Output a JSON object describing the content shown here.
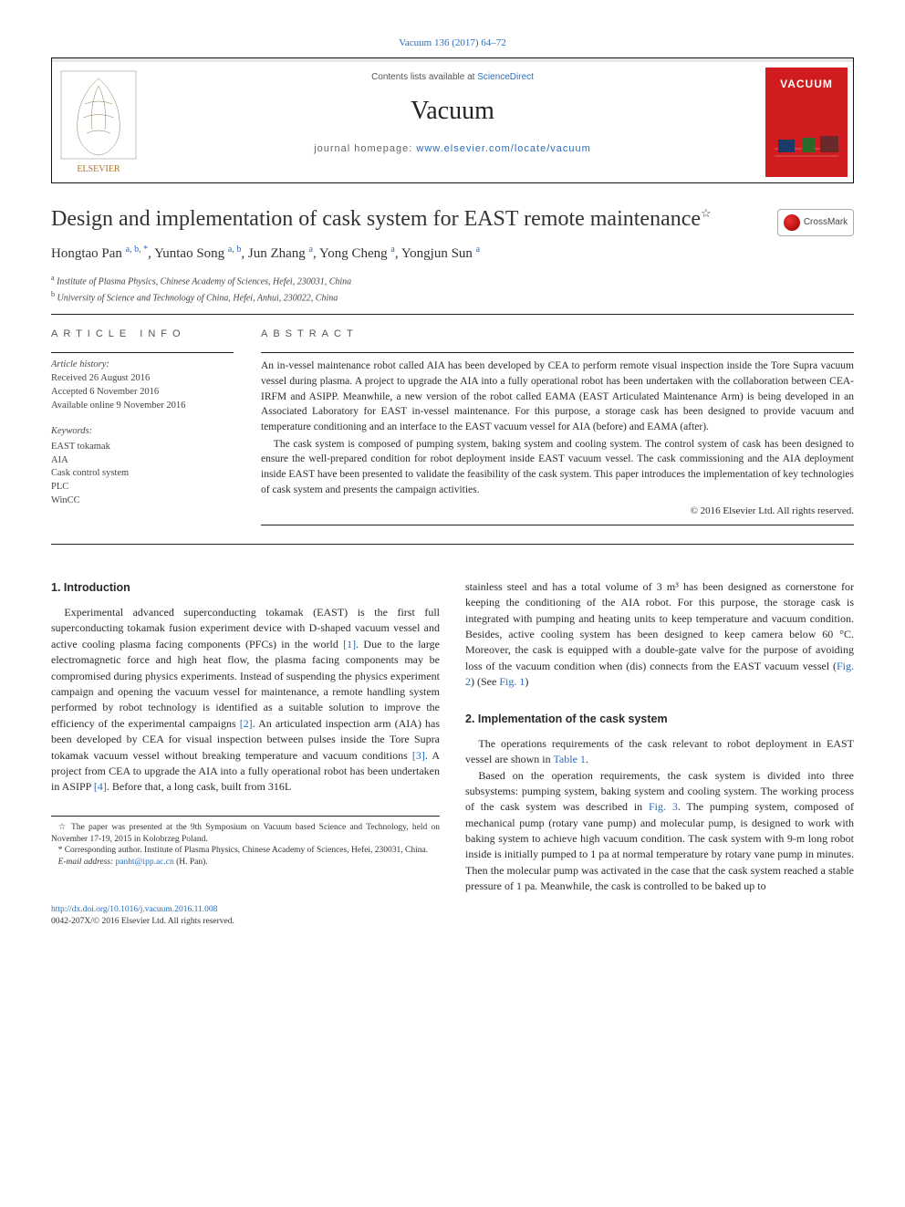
{
  "journal": {
    "citation": "Vacuum 136 (2017) 64–72",
    "contents_prefix": "Contents lists available at ",
    "contents_link": "ScienceDirect",
    "name": "Vacuum",
    "homepage_prefix": "journal homepage: ",
    "homepage_url": "www.elsevier.com/locate/vacuum",
    "cover_label": "VACUUM",
    "publisher_name": "ELSEVIER"
  },
  "article": {
    "title": "Design and implementation of cask system for EAST remote maintenance",
    "title_note_marker": "☆",
    "crossmark_label": "CrossMark"
  },
  "authors_html": "Hongtao Pan <sup>a, b, *</sup>, Yuntao Song <sup>a, b</sup>, Jun Zhang <sup>a</sup>, Yong Cheng <sup>a</sup>, Yongjun Sun <sup>a</sup>",
  "affiliations": [
    {
      "marker": "a",
      "text": "Institute of Plasma Physics, Chinese Academy of Sciences, Hefei, 230031, China"
    },
    {
      "marker": "b",
      "text": "University of Science and Technology of China, Hefei, Anhui, 230022, China"
    }
  ],
  "article_info": {
    "heading": "ARTICLE INFO",
    "history_label": "Article history:",
    "received": "Received 26 August 2016",
    "accepted": "Accepted 6 November 2016",
    "online": "Available online 9 November 2016",
    "keywords_label": "Keywords:",
    "keywords": [
      "EAST tokamak",
      "AIA",
      "Cask control system",
      "PLC",
      "WinCC"
    ]
  },
  "abstract": {
    "heading": "ABSTRACT",
    "p1": "An in-vessel maintenance robot called AIA has been developed by CEA to perform remote visual inspection inside the Tore Supra vacuum vessel during plasma. A project to upgrade the AIA into a fully operational robot has been undertaken with the collaboration between CEA-IRFM and ASIPP. Meanwhile, a new version of the robot called EAMA (EAST Articulated Maintenance Arm) is being developed in an Associated Laboratory for EAST in-vessel maintenance. For this purpose, a storage cask has been designed to provide vacuum and temperature conditioning and an interface to the EAST vacuum vessel for AIA (before) and EAMA (after).",
    "p2": "The cask system is composed of pumping system, baking system and cooling system. The control system of cask has been designed to ensure the well-prepared condition for robot deployment inside EAST vacuum vessel. The cask commissioning and the AIA deployment inside EAST have been presented to validate the feasibility of the cask system. This paper introduces the implementation of key technologies of cask system and presents the campaign activities.",
    "copyright": "© 2016 Elsevier Ltd. All rights reserved."
  },
  "body": {
    "s1_heading": "1. Introduction",
    "s1_p1_a": "Experimental advanced superconducting tokamak (EAST) is the first full superconducting tokamak fusion experiment device with D-shaped vacuum vessel and active cooling plasma facing components (PFCs) in the world ",
    "ref1": "[1]",
    "s1_p1_b": ". Due to the large electromagnetic force and high heat flow, the plasma facing components may be compromised during physics experiments. Instead of suspending the physics experiment campaign and opening the vacuum vessel for maintenance, a remote handling system performed by robot technology is identified as a suitable solution to improve the efficiency of the experimental campaigns ",
    "ref2": "[2]",
    "s1_p1_c": ". An articulated inspection arm (AIA) has been developed by CEA for visual inspection between pulses inside the Tore Supra tokamak vacuum vessel without breaking temperature and vacuum conditions ",
    "ref3": "[3]",
    "s1_p1_d": ". A project from CEA to upgrade the AIA into a fully operational robot has been undertaken in ASIPP ",
    "ref4": "[4]",
    "s1_p1_e": ". Before that, a long cask, built from 316L ",
    "s1_cont_a": "stainless steel and has a total volume of 3 m³ has been designed as cornerstone for keeping the conditioning of the AIA robot. For this purpose, the storage cask is integrated with pumping and heating units to keep temperature and vacuum condition. Besides, active cooling system has been designed to keep camera below 60 °C. Moreover, the cask is equipped with a double-gate valve for the purpose of avoiding loss of the vacuum condition when (dis) connects from the EAST vacuum vessel (",
    "fig2": "Fig. 2",
    "s1_cont_b": ") (See ",
    "fig1": "Fig. 1",
    "s1_cont_c": ")",
    "s2_heading": "2. Implementation of the cask system",
    "s2_p1_a": "The operations requirements of the cask relevant to robot deployment in EAST vessel are shown in ",
    "table1": "Table 1",
    "s2_p1_b": ".",
    "s2_p2_a": "Based on the operation requirements, the cask system is divided into three subsystems: pumping system, baking system and cooling system. The working process of the cask system was described in ",
    "fig3": "Fig. 3",
    "s2_p2_b": ". The pumping system, composed of mechanical pump (rotary vane pump) and molecular pump, is designed to work with baking system to achieve high vacuum condition. The cask system with 9-m long robot inside is initially pumped to 1 pa at normal temperature by rotary vane pump in minutes. Then the molecular pump was activated in the case that the cask system reached a stable pressure of 1 pa. Meanwhile, the cask is controlled to be baked up to"
  },
  "footnotes": {
    "star": "☆ The paper was presented at the 9th Symposium on Vacuum based Science and Technology, held on November 17-19, 2015 in Kolobrzeg Poland.",
    "corr": "* Corresponding author. Institute of Plasma Physics, Chinese Academy of Sciences, Hefei, 230031, China.",
    "email_label": "E-mail address: ",
    "email": "panht@ipp.ac.cn",
    "email_suffix": " (H. Pan)."
  },
  "footer": {
    "doi": "http://dx.doi.org/10.1016/j.vacuum.2016.11.008",
    "issn_line": "0042-207X/© 2016 Elsevier Ltd. All rights reserved."
  },
  "colors": {
    "link": "#2a6ebb",
    "cover_bg": "#d01c1f"
  }
}
